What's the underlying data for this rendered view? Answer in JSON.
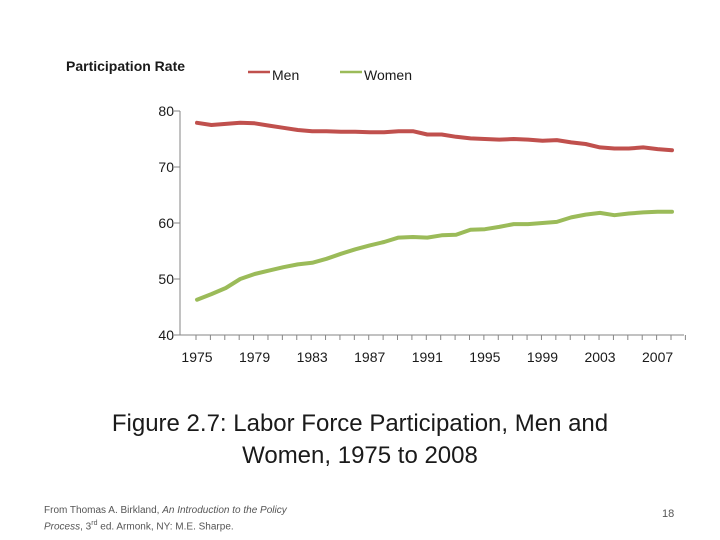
{
  "chart_data": {
    "type": "line",
    "title": "",
    "ylabel": "Participation Rate",
    "xlabel": "",
    "x": [
      1975,
      1976,
      1977,
      1978,
      1979,
      1980,
      1981,
      1982,
      1983,
      1984,
      1985,
      1986,
      1987,
      1988,
      1989,
      1990,
      1991,
      1992,
      1993,
      1994,
      1995,
      1996,
      1997,
      1998,
      1999,
      2000,
      2001,
      2002,
      2003,
      2004,
      2005,
      2006,
      2007,
      2008
    ],
    "series": [
      {
        "name": "Men",
        "color": "#c0504d",
        "values": [
          77.9,
          77.5,
          77.7,
          77.9,
          77.8,
          77.4,
          77.0,
          76.6,
          76.4,
          76.4,
          76.3,
          76.3,
          76.2,
          76.2,
          76.4,
          76.4,
          75.8,
          75.8,
          75.4,
          75.1,
          75.0,
          74.9,
          75.0,
          74.9,
          74.7,
          74.8,
          74.4,
          74.1,
          73.5,
          73.3,
          73.3,
          73.5,
          73.2,
          73.0
        ]
      },
      {
        "name": "Women",
        "color": "#9bbb59",
        "values": [
          46.3,
          47.3,
          48.4,
          50.0,
          50.9,
          51.5,
          52.1,
          52.6,
          52.9,
          53.6,
          54.5,
          55.3,
          56.0,
          56.6,
          57.4,
          57.5,
          57.4,
          57.8,
          57.9,
          58.8,
          58.9,
          59.3,
          59.8,
          59.8,
          60.0,
          60.2,
          61.0,
          61.5,
          61.8,
          61.4,
          61.7,
          61.9,
          62.0,
          62.0
        ]
      }
    ],
    "xticks": [
      "1975",
      "1979",
      "1983",
      "1987",
      "1991",
      "1995",
      "1999",
      "2003",
      "2007"
    ],
    "yticks": [
      "40",
      "50",
      "60",
      "70",
      "80"
    ],
    "ylim": [
      40,
      80
    ],
    "xlim": [
      1975,
      2008
    ],
    "grid": false,
    "legend": "top"
  },
  "caption": {
    "line1": "Figure 2.7: Labor Force Participation, Men and",
    "line2": "Women, 1975 to 2008"
  },
  "source": {
    "prefix": "From Thomas A. Birkland, ",
    "book_title_1": "An Introduction to the Policy",
    "book_title_2": "Process",
    "suffix_a": ", 3",
    "superscript": "rd",
    "suffix_b": " ed. Armonk, NY: M.E. Sharpe."
  },
  "slide_number": "18"
}
